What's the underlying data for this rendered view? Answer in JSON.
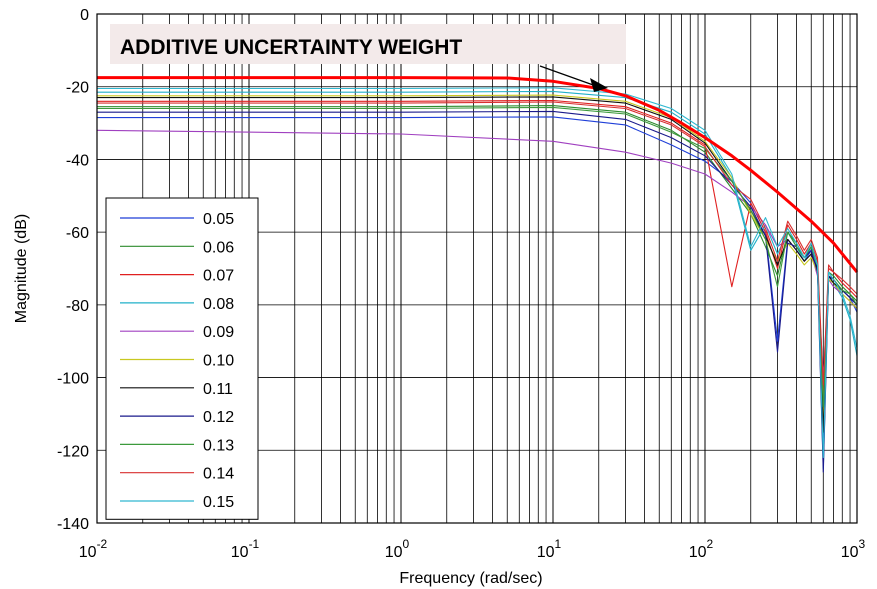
{
  "chart_data": {
    "type": "line",
    "title": "ADDITIVE UNCERTAINTY WEIGHT",
    "xlabel": "Frequency (rad/sec)",
    "ylabel": "Magnitude (dB)",
    "xscale": "log",
    "xlim": [
      0.01,
      1000
    ],
    "ylim": [
      -140,
      0
    ],
    "grid": true,
    "legend_position": "bottom-left",
    "xticks": [
      {
        "base": "10",
        "exp": "-2",
        "value": 0.01
      },
      {
        "base": "10",
        "exp": "-1",
        "value": 0.1
      },
      {
        "base": "10",
        "exp": "0",
        "value": 1
      },
      {
        "base": "10",
        "exp": "1",
        "value": 10
      },
      {
        "base": "10",
        "exp": "2",
        "value": 100
      },
      {
        "base": "10",
        "exp": "3",
        "value": 1000
      }
    ],
    "yticks": [
      "0",
      "-20",
      "-40",
      "-60",
      "-80",
      "-100",
      "-120",
      "-140"
    ],
    "series": [
      {
        "name": "0.05",
        "color": "#1f3fd8",
        "x": [
          0.01,
          1,
          10,
          30,
          60,
          100,
          150,
          200,
          250,
          300,
          350,
          400,
          450,
          500,
          550,
          600,
          650,
          700,
          800,
          900,
          1000
        ],
        "y": [
          -28.5,
          -28.5,
          -28.3,
          -30.5,
          -36,
          -40.5,
          -46,
          -52,
          -60,
          -90,
          -62,
          -65,
          -68,
          -65,
          -70,
          -118,
          -72,
          -74,
          -76,
          -78,
          -82
        ]
      },
      {
        "name": "0.06",
        "color": "#2e8b2e",
        "x": [
          0.01,
          1,
          10,
          30,
          60,
          100,
          150,
          200,
          250,
          300,
          350,
          400,
          450,
          500,
          550,
          600,
          650,
          700,
          800,
          900,
          1000
        ],
        "y": [
          -25.5,
          -25.5,
          -25.2,
          -27,
          -32,
          -38,
          -48,
          -55,
          -64,
          -72,
          -60,
          -63,
          -67,
          -64,
          -70,
          -110,
          -71,
          -72,
          -75,
          -77,
          -79
        ]
      },
      {
        "name": "0.07",
        "color": "#e02020",
        "x": [
          0.01,
          1,
          10,
          30,
          60,
          100,
          150,
          200,
          250,
          300,
          350,
          400,
          450,
          500,
          550,
          600,
          650,
          700,
          800,
          900,
          1000
        ],
        "y": [
          -24,
          -24,
          -23.8,
          -25.5,
          -30,
          -36,
          -75,
          -52,
          -60,
          -70,
          -58,
          -62,
          -66,
          -63,
          -68,
          -105,
          -70,
          -71,
          -74,
          -76,
          -78
        ]
      },
      {
        "name": "0.08",
        "color": "#20b0c8",
        "x": [
          0.01,
          1,
          10,
          30,
          60,
          100,
          150,
          200,
          250,
          300,
          350,
          400,
          450,
          500,
          550,
          600,
          650,
          700,
          800,
          900,
          1000
        ],
        "y": [
          -21.5,
          -21.5,
          -21.3,
          -23,
          -27,
          -33,
          -45,
          -65,
          -58,
          -66,
          -60,
          -64,
          -68,
          -64,
          -70,
          -125,
          -72,
          -74,
          -78,
          -84,
          -94
        ]
      },
      {
        "name": "0.09",
        "color": "#a040c0",
        "x": [
          0.01,
          1,
          10,
          30,
          60,
          100,
          150,
          200,
          250,
          300,
          350,
          400,
          450,
          500,
          550,
          600,
          650,
          700,
          800,
          900,
          1000
        ],
        "y": [
          -32,
          -33,
          -35,
          -38,
          -41,
          -44,
          -49,
          -53,
          -58,
          -64,
          -62,
          -65,
          -68,
          -66,
          -72,
          -100,
          -73,
          -75,
          -77,
          -79,
          -81
        ]
      },
      {
        "name": "0.10",
        "color": "#c8c820",
        "x": [
          0.01,
          1,
          10,
          30,
          60,
          100,
          150,
          200,
          250,
          300,
          350,
          400,
          450,
          500,
          550,
          600,
          650,
          700,
          800,
          900,
          1000
        ],
        "y": [
          -22.5,
          -22.5,
          -22.3,
          -24,
          -28.5,
          -35,
          -45,
          -55,
          -62,
          -68,
          -63,
          -66,
          -69,
          -67,
          -71,
          -112,
          -73,
          -74,
          -77,
          -79,
          -81
        ]
      },
      {
        "name": "0.11",
        "color": "#111111",
        "x": [
          0.01,
          1,
          10,
          30,
          60,
          100,
          150,
          200,
          250,
          300,
          350,
          400,
          450,
          500,
          550,
          600,
          650,
          700,
          800,
          900,
          1000
        ],
        "y": [
          -23,
          -23,
          -22.8,
          -24.5,
          -29,
          -35.5,
          -46,
          -54,
          -61,
          -69,
          -62,
          -65,
          -68,
          -66,
          -70,
          -115,
          -72,
          -74,
          -76,
          -78,
          -80
        ]
      },
      {
        "name": "0.12",
        "color": "#1a1a8c",
        "x": [
          0.01,
          1,
          10,
          30,
          60,
          100,
          150,
          200,
          250,
          300,
          350,
          400,
          450,
          500,
          550,
          600,
          650,
          700,
          800,
          900,
          1000
        ],
        "y": [
          -27,
          -27,
          -26.8,
          -29,
          -34,
          -39,
          -47,
          -53,
          -61,
          -93,
          -63,
          -64,
          -67,
          -65,
          -71,
          -126,
          -72,
          -73,
          -76,
          -78,
          -80
        ]
      },
      {
        "name": "0.13",
        "color": "#3c9a3c",
        "x": [
          0.01,
          1,
          10,
          30,
          60,
          100,
          150,
          200,
          250,
          300,
          350,
          400,
          450,
          500,
          550,
          600,
          650,
          700,
          800,
          900,
          1000
        ],
        "y": [
          -26,
          -26,
          -25.7,
          -27.5,
          -32.5,
          -37,
          -46,
          -54,
          -62,
          -75,
          -60,
          -64,
          -67,
          -64,
          -69,
          -108,
          -71,
          -73,
          -76,
          -77,
          -80
        ]
      },
      {
        "name": "0.14",
        "color": "#d83030",
        "x": [
          0.01,
          1,
          10,
          30,
          60,
          100,
          150,
          200,
          250,
          300,
          350,
          400,
          450,
          500,
          550,
          600,
          650,
          700,
          800,
          900,
          1000
        ],
        "y": [
          -24.5,
          -24.5,
          -24.2,
          -26,
          -30.5,
          -36.5,
          -47,
          -51,
          -59,
          -68,
          -57,
          -61,
          -65,
          -62,
          -67,
          -102,
          -69,
          -71,
          -73,
          -75,
          -77
        ]
      },
      {
        "name": "0.15",
        "color": "#30b8d0",
        "x": [
          0.01,
          1,
          10,
          30,
          60,
          100,
          150,
          200,
          250,
          300,
          350,
          400,
          450,
          500,
          550,
          600,
          650,
          700,
          800,
          900,
          1000
        ],
        "y": [
          -20.5,
          -20.5,
          -20.3,
          -22,
          -26,
          -32,
          -44,
          -64,
          -56,
          -64,
          -59,
          -63,
          -67,
          -63,
          -69,
          -122,
          -71,
          -73,
          -77,
          -83,
          -92
        ]
      },
      {
        "color": "#ff0000",
        "width": 3,
        "x": [
          0.01,
          1,
          5,
          10,
          20,
          30,
          50,
          70,
          100,
          150,
          200,
          300,
          500,
          700,
          1000
        ],
        "y": [
          -17.5,
          -17.5,
          -17.6,
          -18.5,
          -20.5,
          -22.5,
          -26.5,
          -30,
          -34,
          -39,
          -43,
          -49,
          -57,
          -63,
          -71
        ]
      }
    ]
  }
}
